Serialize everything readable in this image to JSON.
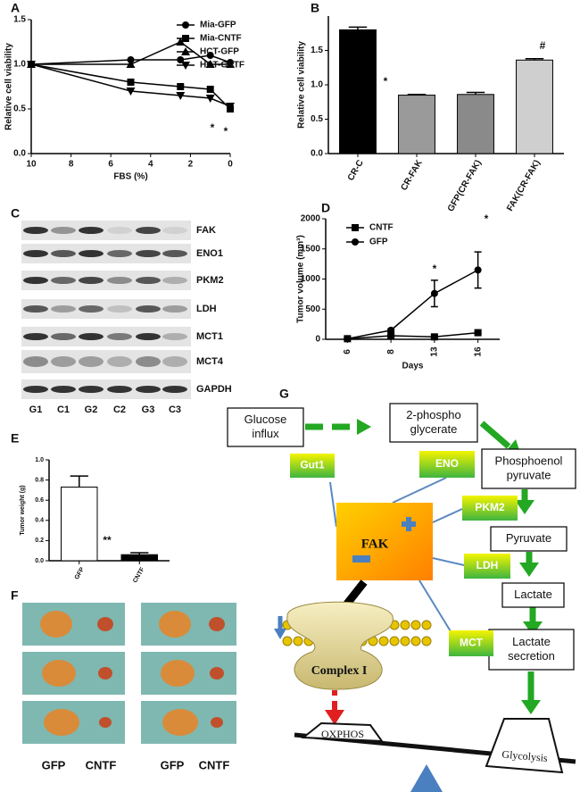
{
  "chart_data": [
    {
      "type": "line",
      "panel": "A",
      "ylabel": "Relative cell viability",
      "xlabel": "FBS (%)",
      "x": [
        10,
        5,
        2.5,
        1,
        0
      ],
      "xlim": [
        10,
        0
      ],
      "xticks": [
        10,
        8,
        6,
        4,
        2,
        0
      ],
      "ylim": [
        0,
        1.5
      ],
      "yticks": [
        {
          "value": 0,
          "label": "0.0"
        },
        0.5,
        {
          "value": 1,
          "label": "1.0"
        },
        1.5
      ],
      "series": [
        {
          "name": "Mia-GFP",
          "color": "#000000",
          "marker": "circle",
          "values": [
            1.0,
            1.05,
            1.05,
            1.1,
            1.02
          ]
        },
        {
          "name": "Mia-CNTF",
          "color": "#000000",
          "marker": "square",
          "values": [
            1.0,
            0.8,
            0.75,
            0.72,
            0.5
          ]
        },
        {
          "name": "HCT-GFP",
          "color": "#000000",
          "marker": "triangle",
          "values": [
            1.0,
            1.0,
            1.25,
            1.0,
            1.0
          ]
        },
        {
          "name": "HCT-CNTF",
          "color": "#000000",
          "marker": "triangle-down",
          "values": [
            1.0,
            0.7,
            0.65,
            0.62,
            0.53
          ]
        }
      ],
      "annotations": [
        "*",
        "*"
      ]
    },
    {
      "type": "bar",
      "panel": "B",
      "ylabel": "Relative cell viability",
      "categories": [
        "CR-C",
        "CR-FAK",
        "GFP(CR-FAK)",
        "FAK(CR-FAK)"
      ],
      "values": [
        1.8,
        0.85,
        0.86,
        1.36
      ],
      "errors": [
        0.04,
        0.01,
        0.03,
        0.02
      ],
      "colors": [
        "#000000",
        "#9a9a9a",
        "#8a8a8a",
        "#cfcfcf"
      ],
      "ylim": [
        0,
        2
      ],
      "yticks": [
        {
          "value": 0,
          "label": "0.0"
        },
        0.5,
        {
          "value": 1,
          "label": "1.0"
        },
        1.5
      ],
      "annotations": [
        "*",
        "#"
      ]
    },
    {
      "type": "line",
      "panel": "D",
      "ylabel": "Tumor volume (mm³)",
      "xlabel": "Days",
      "categories": [
        "6",
        "8",
        "13",
        "16"
      ],
      "ylim": [
        0,
        2000
      ],
      "yticks": [
        0,
        500,
        1000,
        1500,
        2000
      ],
      "series": [
        {
          "name": "CNTF",
          "color": "#000000",
          "marker": "square",
          "values": [
            10,
            60,
            40,
            110
          ],
          "errors": [
            5,
            10,
            10,
            20
          ]
        },
        {
          "name": "GFP",
          "color": "#000000",
          "marker": "circle",
          "values": [
            10,
            150,
            760,
            1150
          ],
          "errors": [
            5,
            20,
            220,
            300
          ]
        }
      ],
      "annotations": [
        "*",
        "*"
      ]
    },
    {
      "type": "bar",
      "panel": "E",
      "ylabel": "Tumor weight (g)",
      "categories": [
        "GFP",
        "CNTF"
      ],
      "values": [
        0.73,
        0.06
      ],
      "errors": [
        0.11,
        0.02
      ],
      "colors": [
        "#ffffff",
        "#000000"
      ],
      "ylim": [
        0,
        1
      ],
      "yticks": [
        {
          "value": 0,
          "label": "0.0"
        },
        0.2,
        0.4,
        0.6,
        0.8,
        {
          "value": 1,
          "label": "1.0"
        }
      ],
      "annotations": [
        "**"
      ]
    }
  ],
  "blot": {
    "panel": "C",
    "rows": [
      "FAK",
      "ENO1",
      "PKM2",
      "LDH",
      "MCT1",
      "MCT4",
      "GAPDH"
    ],
    "lanes": [
      "G1",
      "C1",
      "G2",
      "C2",
      "G3",
      "C3"
    ]
  },
  "photos": {
    "panel": "F",
    "labels": [
      "GFP",
      "CNTF",
      "GFP",
      "CNTF"
    ]
  },
  "diagram": {
    "panel": "G",
    "steps": [
      [
        "Glucose",
        "influx"
      ],
      [
        "2-phospho",
        "glycerate"
      ],
      [
        "Phosphoenol",
        "pyruvate"
      ],
      [
        "Pyruvate"
      ],
      [
        "Lactate"
      ],
      [
        "Lactate",
        "secretion"
      ]
    ],
    "enzymes": [
      "Gut1",
      "ENO",
      "PKM2",
      "LDH",
      "MCT"
    ],
    "center": "FAK",
    "complex": "Complex I",
    "balance": [
      "OXPHOS",
      "Glycolysis"
    ]
  }
}
